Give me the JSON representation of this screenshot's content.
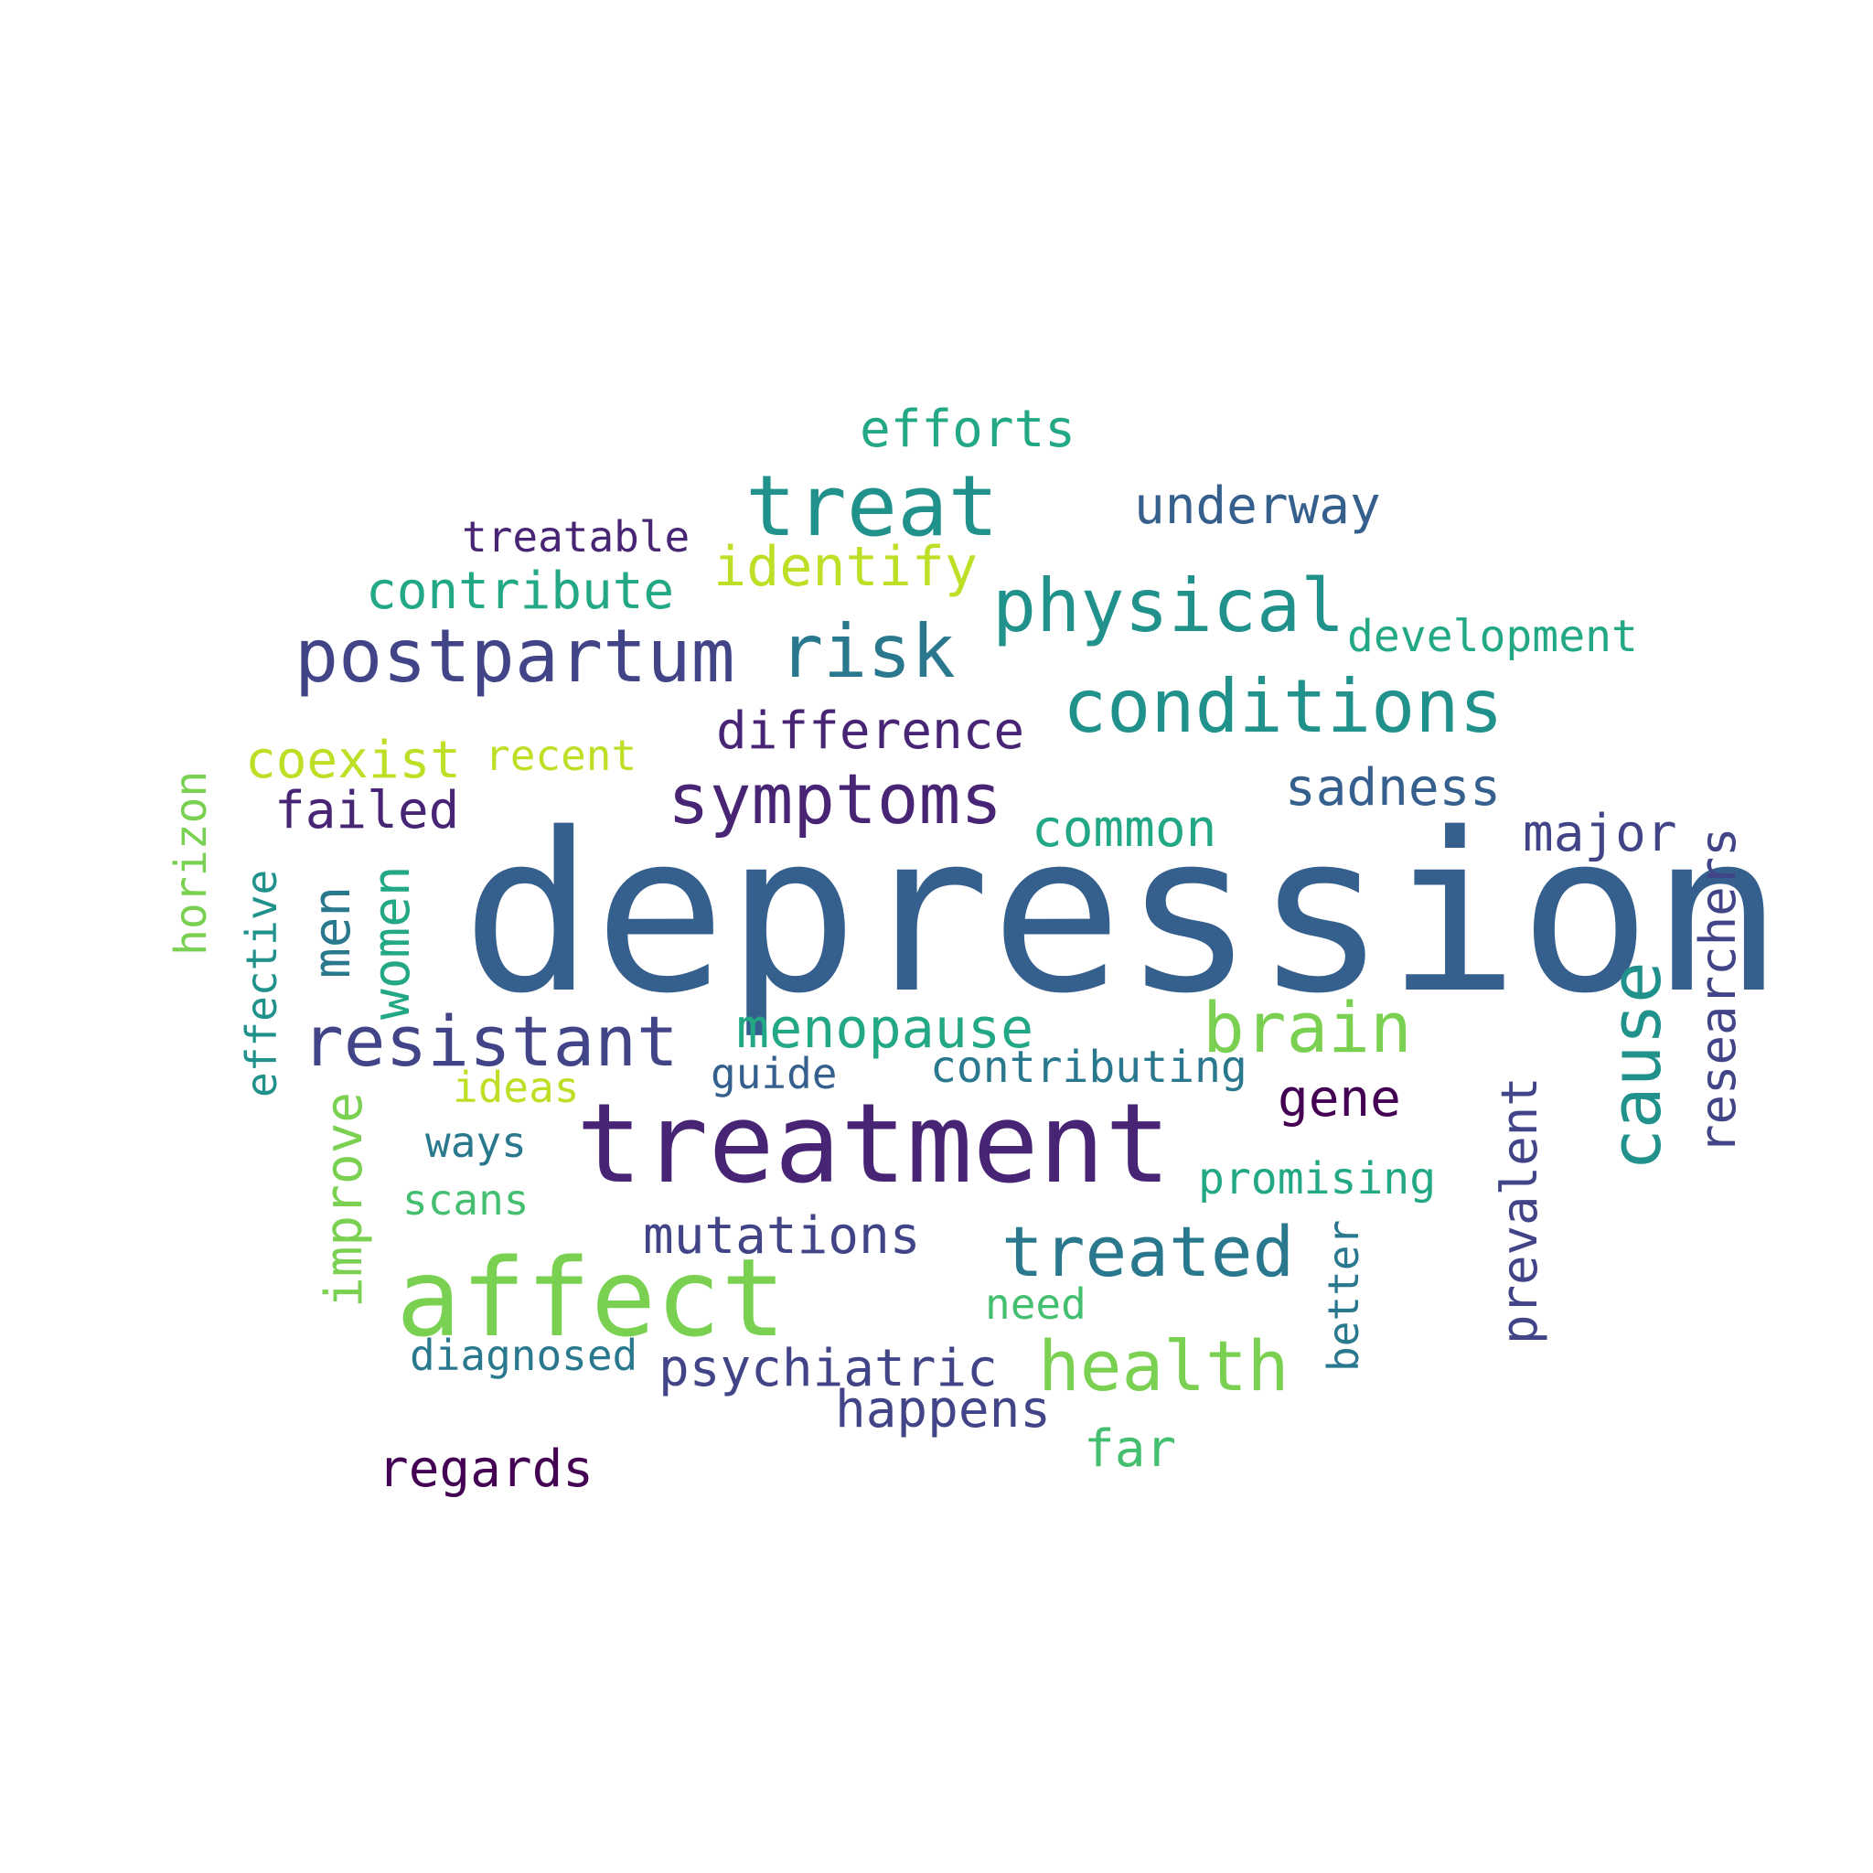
{
  "colors": {
    "dark_purple": "#440154",
    "purple": "#482475",
    "indigo": "#414487",
    "blue": "#355f8d",
    "steel_blue": "#2a788e",
    "teal": "#21918c",
    "green_teal": "#22a884",
    "green": "#44bf70",
    "light_green": "#7ad151",
    "yellow_green": "#bddf26",
    "background": "#ffffff"
  },
  "words": [
    {
      "text": "depression",
      "color": "#355f8d"
    },
    {
      "text": "treatment",
      "color": "#482475"
    },
    {
      "text": "affect",
      "color": "#7ad151"
    },
    {
      "text": "treat",
      "color": "#21918c"
    },
    {
      "text": "physical",
      "color": "#21918c"
    },
    {
      "text": "postpartum",
      "color": "#414487"
    },
    {
      "text": "risk",
      "color": "#2a788e"
    },
    {
      "text": "conditions",
      "color": "#21918c"
    },
    {
      "text": "symptoms",
      "color": "#482475"
    },
    {
      "text": "resistant",
      "color": "#414487"
    },
    {
      "text": "brain",
      "color": "#7ad151"
    },
    {
      "text": "cause",
      "color": "#21918c"
    },
    {
      "text": "health",
      "color": "#7ad151"
    },
    {
      "text": "treated",
      "color": "#2a788e"
    },
    {
      "text": "researchers",
      "color": "#414487"
    },
    {
      "text": "prevalent",
      "color": "#414487"
    },
    {
      "text": "menopause",
      "color": "#22a884"
    },
    {
      "text": "difference",
      "color": "#482475"
    },
    {
      "text": "underway",
      "color": "#355f8d"
    },
    {
      "text": "efforts",
      "color": "#22a884"
    },
    {
      "text": "identify",
      "color": "#bddf26"
    },
    {
      "text": "contribute",
      "color": "#22a884"
    },
    {
      "text": "coexist",
      "color": "#bddf26"
    },
    {
      "text": "failed",
      "color": "#482475"
    },
    {
      "text": "sadness",
      "color": "#355f8d"
    },
    {
      "text": "common",
      "color": "#22a884"
    },
    {
      "text": "major",
      "color": "#414487"
    },
    {
      "text": "women",
      "color": "#22a884"
    },
    {
      "text": "men",
      "color": "#2a788e"
    },
    {
      "text": "improve",
      "color": "#7ad151"
    },
    {
      "text": "mutations",
      "color": "#414487"
    },
    {
      "text": "psychiatric",
      "color": "#414487"
    },
    {
      "text": "happens",
      "color": "#414487"
    },
    {
      "text": "regards",
      "color": "#440154"
    },
    {
      "text": "gene",
      "color": "#440154"
    },
    {
      "text": "far",
      "color": "#44bf70"
    },
    {
      "text": "contributing",
      "color": "#2a788e"
    },
    {
      "text": "promising",
      "color": "#22a884"
    },
    {
      "text": "development",
      "color": "#22a884"
    },
    {
      "text": "treatable",
      "color": "#482475"
    },
    {
      "text": "recent",
      "color": "#bddf26"
    },
    {
      "text": "horizon",
      "color": "#7ad151"
    },
    {
      "text": "effective",
      "color": "#21918c"
    },
    {
      "text": "guide",
      "color": "#355f8d"
    },
    {
      "text": "ideas",
      "color": "#bddf26"
    },
    {
      "text": "ways",
      "color": "#2a788e"
    },
    {
      "text": "scans",
      "color": "#44bf70"
    },
    {
      "text": "diagnosed",
      "color": "#2a788e"
    },
    {
      "text": "need",
      "color": "#44bf70"
    },
    {
      "text": "better",
      "color": "#2a788e"
    }
  ]
}
